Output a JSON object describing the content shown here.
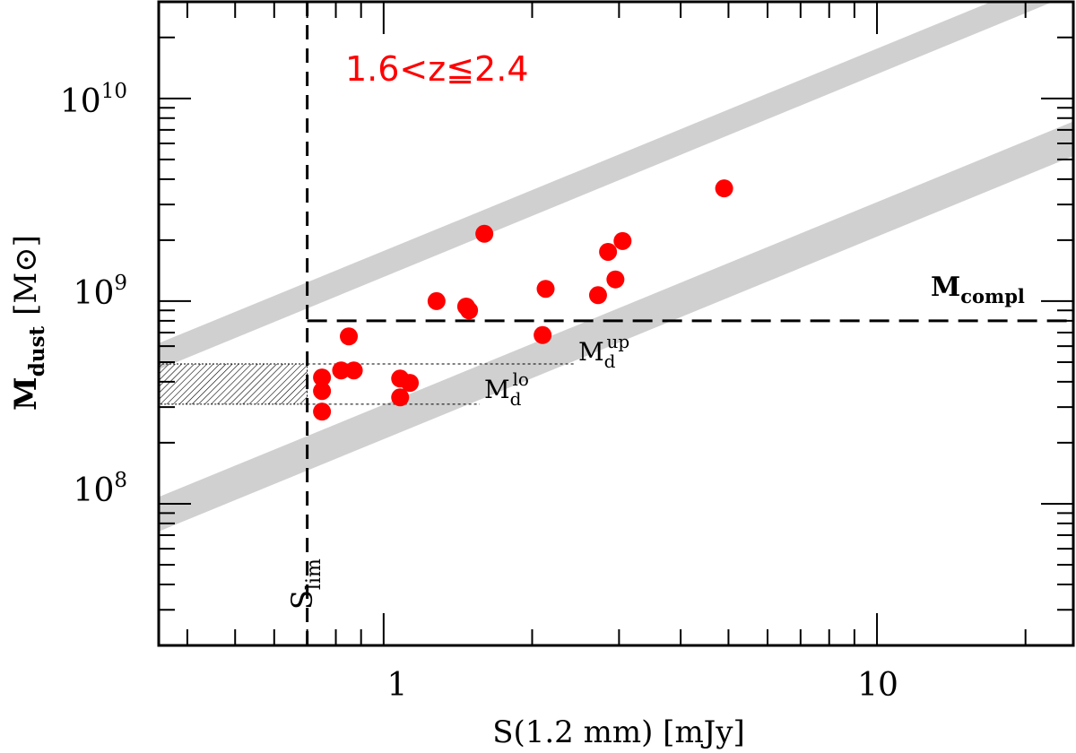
{
  "chart_data": {
    "type": "scatter",
    "xscale": "log",
    "yscale": "log",
    "xlim": [
      0.35,
      25
    ],
    "ylim": [
      20000000,
      30000000000
    ],
    "xlabel": "S(1.2 mm) [mJy]",
    "ylabel": {
      "main": "M",
      "sub": "dust",
      "unit_open": "[M",
      "unit_sym": "⊙",
      "unit_close": "]"
    },
    "x_tick_labels": [
      "1",
      "10"
    ],
    "y_tick_labels": [
      {
        "base": "10",
        "exp": "8"
      },
      {
        "base": "10",
        "exp": "9"
      },
      {
        "base": "10",
        "exp": "10"
      }
    ],
    "redshift_label": "1.6<z≦2.4",
    "s_lim": {
      "x": 0.7,
      "label_main": "S",
      "label_sub": "lim"
    },
    "m_compl": {
      "y": 800000000,
      "label_main": "M",
      "label_sub": "compl"
    },
    "m_up": {
      "y": 490000000,
      "label_main": "M",
      "label_sub": "d",
      "label_sup": "up"
    },
    "m_lo": {
      "y": 310000000,
      "label_main": "M",
      "label_sub": "d",
      "label_sup": "lo"
    },
    "bands": [
      {
        "name": "upper band",
        "x": [
          0.35,
          25
        ],
        "lo": [
          460000000,
          33000000000
        ],
        "hi": [
          620000000,
          44000000000
        ]
      },
      {
        "name": "lower band",
        "x": [
          0.35,
          25
        ],
        "lo": [
          73000000,
          5200000000
        ],
        "hi": [
          108000000,
          7700000000
        ]
      }
    ],
    "points": [
      {
        "x": 0.75,
        "y": 420000000
      },
      {
        "x": 0.75,
        "y": 360000000
      },
      {
        "x": 0.75,
        "y": 285000000
      },
      {
        "x": 0.82,
        "y": 455000000
      },
      {
        "x": 0.85,
        "y": 670000000
      },
      {
        "x": 0.87,
        "y": 455000000
      },
      {
        "x": 1.08,
        "y": 415000000
      },
      {
        "x": 1.08,
        "y": 335000000
      },
      {
        "x": 1.13,
        "y": 395000000
      },
      {
        "x": 1.28,
        "y": 1000000000
      },
      {
        "x": 1.47,
        "y": 940000000
      },
      {
        "x": 1.49,
        "y": 900000000
      },
      {
        "x": 1.6,
        "y": 2150000000
      },
      {
        "x": 2.1,
        "y": 680000000
      },
      {
        "x": 2.13,
        "y": 1150000000
      },
      {
        "x": 2.72,
        "y": 1070000000
      },
      {
        "x": 2.85,
        "y": 1750000000
      },
      {
        "x": 2.95,
        "y": 1280000000
      },
      {
        "x": 3.05,
        "y": 1980000000
      },
      {
        "x": 4.9,
        "y": 3600000000
      }
    ]
  },
  "colors": {
    "points": "#ff0000",
    "bands": "#d0d0d0",
    "redshift_label": "#ff0000"
  }
}
